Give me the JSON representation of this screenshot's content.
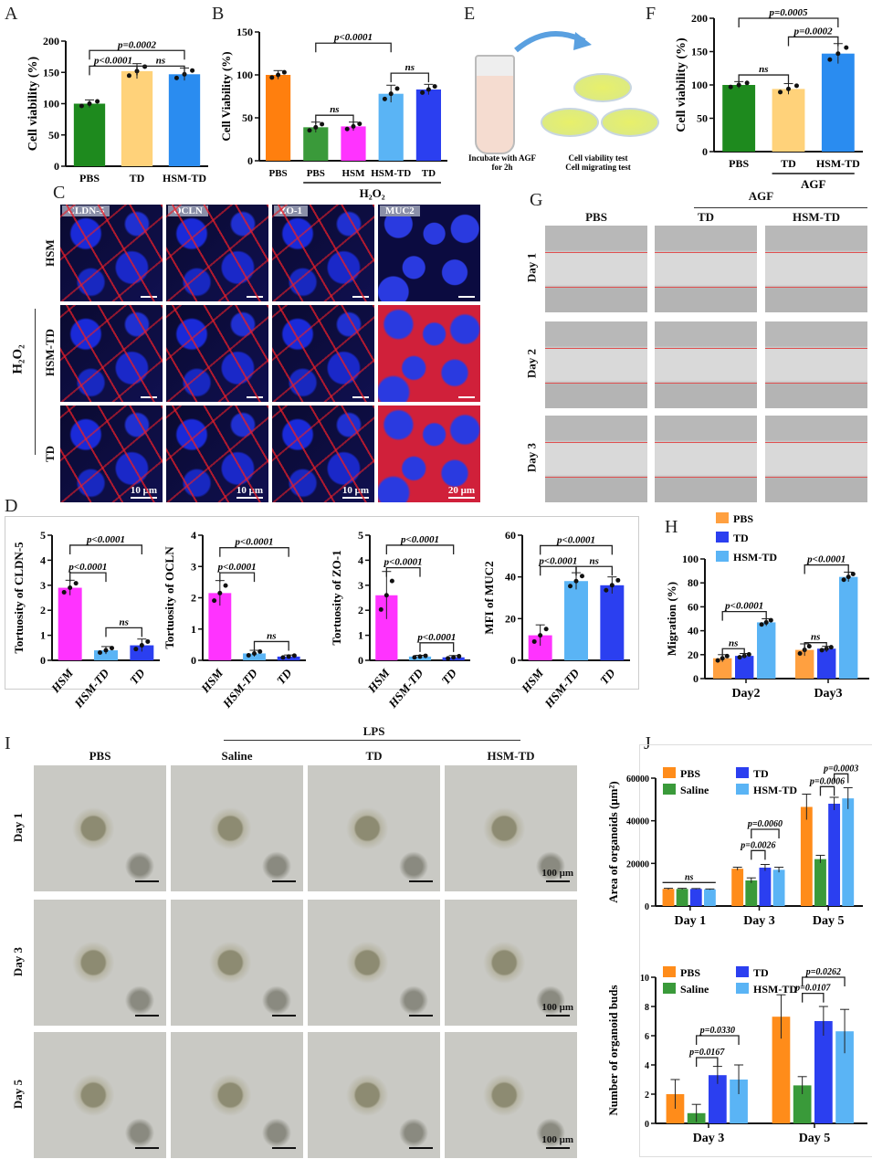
{
  "panels": {
    "A": "A",
    "B": "B",
    "C": "C",
    "D": "D",
    "E": "E",
    "F": "F",
    "G": "G",
    "H": "H",
    "I": "I",
    "J": "J"
  },
  "panel_C": {
    "stains": [
      "CLDN-5",
      "OCLN",
      "ZO-1",
      "MUC2"
    ],
    "rows": [
      "HSM",
      "HSM-TD",
      "TD"
    ],
    "side_label": "H₂O₂",
    "scale_bars": [
      "10 μm",
      "10 μm",
      "10 μm",
      "20 μm"
    ]
  },
  "panel_E": {
    "step1": "Incubate with AGF for 2h",
    "step2a": "Cell viability test",
    "step2b": "Cell migrating test"
  },
  "panel_G": {
    "group_label": "AGF",
    "columns": [
      "PBS",
      "TD",
      "HSM-TD"
    ],
    "rows": [
      "Day 1",
      "Day 2",
      "Day 3"
    ]
  },
  "panel_I": {
    "group_label": "LPS",
    "columns": [
      "PBS",
      "Saline",
      "TD",
      "HSM-TD"
    ],
    "rows": [
      "Day 1",
      "Day 3",
      "Day 5"
    ],
    "scale_bar": "100 μm"
  },
  "chart_data": [
    {
      "panel": "A",
      "type": "bar",
      "categories": [
        "PBS",
        "TD",
        "HSM-TD"
      ],
      "values": [
        100,
        152,
        147
      ],
      "errors": [
        6,
        12,
        10
      ],
      "colors": [
        "#1e8a1e",
        "#ffd27a",
        "#2a8cf0"
      ],
      "ylabel": "Cell viability (%)",
      "ylim": [
        0,
        200
      ],
      "yticks": [
        "0",
        "50",
        "100",
        "150",
        "200"
      ],
      "annotations": [
        {
          "from": 0,
          "to": 1,
          "y": 160,
          "label": "p<0.0001"
        },
        {
          "from": 1,
          "to": 2,
          "y": 160,
          "label": "ns"
        },
        {
          "from": 0,
          "to": 2,
          "y": 185,
          "label": "p=0.0002"
        }
      ]
    },
    {
      "panel": "B",
      "type": "bar",
      "categories": [
        "PBS",
        "PBS",
        "HSM",
        "HSM-TD",
        "TD"
      ],
      "values": [
        100,
        39,
        40,
        78,
        83
      ],
      "errors": [
        5,
        6,
        5,
        10,
        6
      ],
      "colors": [
        "#ff7f0e",
        "#3a9a3a",
        "#ff33ff",
        "#5ab4f5",
        "#2b3ff0"
      ],
      "ylabel": "Cell Viability (%)",
      "ylim": [
        0,
        150
      ],
      "yticks": [
        "0",
        "50",
        "100",
        "150"
      ],
      "group_label": {
        "text": "H₂O₂",
        "from": 1,
        "to": 4
      },
      "annotations": [
        {
          "from": 1,
          "to": 2,
          "y": 53,
          "label": "ns"
        },
        {
          "from": 3,
          "to": 4,
          "y": 102,
          "label": "ns"
        },
        {
          "from": 1,
          "to": 3,
          "y": 137,
          "label": "p<0.0001"
        }
      ]
    },
    {
      "panel": "F",
      "type": "bar",
      "categories": [
        "PBS",
        "TD",
        "HSM-TD"
      ],
      "values": [
        100,
        94,
        147
      ],
      "errors": [
        5,
        8,
        15
      ],
      "colors": [
        "#1e8a1e",
        "#ffd27a",
        "#2a8cf0"
      ],
      "ylabel": "Cell viability (%)",
      "ylim": [
        0,
        200
      ],
      "yticks": [
        "0",
        "50",
        "100",
        "150",
        "200"
      ],
      "group_label": {
        "text": "AGF",
        "from": 1,
        "to": 2
      },
      "annotations": [
        {
          "from": 0,
          "to": 1,
          "y": 115,
          "label": "ns"
        },
        {
          "from": 1,
          "to": 2,
          "y": 172,
          "label": "p=0.0002"
        },
        {
          "from": 0,
          "to": 2,
          "y": 200,
          "label": "p=0.0005"
        }
      ]
    },
    {
      "panel": "D1",
      "type": "bar",
      "categories": [
        "HSM",
        "HSM-TD",
        "TD"
      ],
      "values": [
        2.9,
        0.4,
        0.6
      ],
      "errors": [
        0.3,
        0.15,
        0.25
      ],
      "colors": [
        "#ff33ff",
        "#5ab4f5",
        "#2b3ff0"
      ],
      "ylabel": "Tortuosity of CLDN-5",
      "ylim": [
        0,
        5
      ],
      "yticks": [
        "0",
        "1",
        "2",
        "3",
        "4",
        "5"
      ],
      "annotations": [
        {
          "from": 1,
          "to": 2,
          "y": 1.3,
          "label": "ns"
        },
        {
          "from": 0,
          "to": 1,
          "y": 3.5,
          "label": "p<0.0001"
        },
        {
          "from": 0,
          "to": 2,
          "y": 4.6,
          "label": "p<0.0001"
        }
      ]
    },
    {
      "panel": "D2",
      "type": "bar",
      "categories": [
        "HSM",
        "HSM-TD",
        "TD"
      ],
      "values": [
        2.15,
        0.22,
        0.12
      ],
      "errors": [
        0.4,
        0.1,
        0.05
      ],
      "colors": [
        "#ff33ff",
        "#5ab4f5",
        "#2b3ff0"
      ],
      "ylabel": "Tortuosity of OCLN",
      "ylim": [
        0,
        4
      ],
      "yticks": [
        "0",
        "1",
        "2",
        "3",
        "4"
      ],
      "annotations": [
        {
          "from": 1,
          "to": 2,
          "y": 0.6,
          "label": "ns"
        },
        {
          "from": 0,
          "to": 1,
          "y": 2.8,
          "label": "p<0.0001"
        },
        {
          "from": 0,
          "to": 2,
          "y": 3.6,
          "label": "p<0.0001"
        }
      ]
    },
    {
      "panel": "D3",
      "type": "bar",
      "categories": [
        "HSM",
        "HSM-TD",
        "TD"
      ],
      "values": [
        2.6,
        0.15,
        0.12
      ],
      "errors": [
        0.95,
        0.05,
        0.07
      ],
      "colors": [
        "#ff33ff",
        "#5ab4f5",
        "#2b3ff0"
      ],
      "ylabel": "Tortuosity of ZO-1",
      "ylim": [
        0,
        5
      ],
      "yticks": [
        "0",
        "1",
        "2",
        "3",
        "4",
        "5"
      ],
      "annotations": [
        {
          "from": 1,
          "to": 2,
          "y": 0.7,
          "label": "p<0.0001"
        },
        {
          "from": 0,
          "to": 1,
          "y": 3.7,
          "label": "p<0.0001"
        },
        {
          "from": 0,
          "to": 2,
          "y": 4.6,
          "label": "p<0.0001"
        }
      ]
    },
    {
      "panel": "D4",
      "type": "bar",
      "categories": [
        "HSM",
        "HSM-TD",
        "TD"
      ],
      "values": [
        12,
        38,
        36
      ],
      "errors": [
        5,
        4,
        4
      ],
      "colors": [
        "#ff33ff",
        "#5ab4f5",
        "#2b3ff0"
      ],
      "ylabel": "MFI of MUC2",
      "ylim": [
        0,
        60
      ],
      "yticks": [
        "0",
        "20",
        "40",
        "60"
      ],
      "annotations": [
        {
          "from": 0,
          "to": 1,
          "y": 45,
          "label": "p<0.0001"
        },
        {
          "from": 1,
          "to": 2,
          "y": 45,
          "label": "ns"
        },
        {
          "from": 0,
          "to": 2,
          "y": 55,
          "label": "p<0.0001"
        }
      ]
    },
    {
      "panel": "H",
      "type": "bar",
      "categories": [
        "Day2",
        "Day3"
      ],
      "series": [
        {
          "name": "PBS",
          "values": [
            17,
            24
          ],
          "errors": [
            3,
            5
          ]
        },
        {
          "name": "TD",
          "values": [
            19,
            25
          ],
          "errors": [
            2,
            2
          ]
        },
        {
          "name": "HSM-TD",
          "values": [
            47,
            85
          ],
          "errors": [
            3,
            4
          ]
        }
      ],
      "colors": [
        "#ffa040",
        "#2b3ff0",
        "#5ab4f5"
      ],
      "ylabel": "Migration (%)",
      "ylim": [
        0,
        100
      ],
      "yticks": [
        "0",
        "20",
        "40",
        "60",
        "80",
        "100"
      ],
      "legend": "top-left",
      "annotations": [
        {
          "from": 0,
          "to": 1,
          "y": 25,
          "label": "ns"
        },
        {
          "from": 0,
          "to": 2,
          "y": 56,
          "label": "p<0.0001"
        },
        {
          "from": 3,
          "to": 4,
          "y": 30,
          "label": "ns"
        },
        {
          "from": 3,
          "to": 5,
          "y": 95,
          "label": "p<0.0001"
        }
      ]
    },
    {
      "panel": "J1",
      "type": "bar",
      "categories": [
        "Day 1",
        "Day 3",
        "Day 5"
      ],
      "series": [
        {
          "name": "PBS",
          "values": [
            8000,
            17500,
            46500
          ],
          "errors": [
            300,
            700,
            6000
          ]
        },
        {
          "name": "Saline",
          "values": [
            8000,
            12000,
            22000
          ],
          "errors": [
            300,
            1200,
            1800
          ]
        },
        {
          "name": "TD",
          "values": [
            8000,
            18000,
            48000
          ],
          "errors": [
            200,
            1500,
            3000
          ]
        },
        {
          "name": "HSM-TD",
          "values": [
            7800,
            17000,
            50500
          ],
          "errors": [
            200,
            1200,
            5000
          ]
        }
      ],
      "colors": [
        "#ff8c1a",
        "#3a9a3a",
        "#2b3ff0",
        "#5ab4f5"
      ],
      "ylabel": "Area of organoids (μm²)",
      "ylim": [
        0,
        60000
      ],
      "yticks": [
        "0",
        "20000",
        "40000",
        "60000"
      ],
      "legend": "top-left",
      "annotations": [
        {
          "from": 0,
          "to": 3,
          "y": 11000,
          "label": "ns",
          "flat": true
        },
        {
          "from": 5,
          "to": 6,
          "y": 26000,
          "label": "p=0.0026"
        },
        {
          "from": 5,
          "to": 7,
          "y": 36000,
          "label": "p=0.0060"
        },
        {
          "from": 9,
          "to": 10,
          "y": 56000,
          "label": "p=0.0006"
        },
        {
          "from": 10,
          "to": 11,
          "y": 62000,
          "label": "p=0.0003"
        }
      ]
    },
    {
      "panel": "J2",
      "type": "bar",
      "categories": [
        "Day 3",
        "Day 5"
      ],
      "series": [
        {
          "name": "PBS",
          "values": [
            2.0,
            7.3
          ],
          "errors": [
            1.0,
            1.5
          ]
        },
        {
          "name": "Saline",
          "values": [
            0.7,
            2.6
          ],
          "errors": [
            0.6,
            0.6
          ]
        },
        {
          "name": "TD",
          "values": [
            3.3,
            7.0
          ],
          "errors": [
            0.6,
            1.0
          ]
        },
        {
          "name": "HSM-TD",
          "values": [
            3.0,
            6.3
          ],
          "errors": [
            1.0,
            1.5
          ]
        }
      ],
      "colors": [
        "#ff8c1a",
        "#3a9a3a",
        "#2b3ff0",
        "#5ab4f5"
      ],
      "ylabel": "Number of organoid buds",
      "ylim": [
        0,
        10
      ],
      "yticks": [
        "0",
        "2",
        "4",
        "6",
        "8",
        "10"
      ],
      "legend": "top-left",
      "annotations": [
        {
          "from": 1,
          "to": 2,
          "y": 4.5,
          "label": "p=0.0167"
        },
        {
          "from": 1,
          "to": 3,
          "y": 6.0,
          "label": "p=0.0330"
        },
        {
          "from": 5,
          "to": 6,
          "y": 8.9,
          "label": "p=0.0107"
        },
        {
          "from": 5,
          "to": 7,
          "y": 10.0,
          "label": "p=0.0262"
        }
      ]
    }
  ]
}
